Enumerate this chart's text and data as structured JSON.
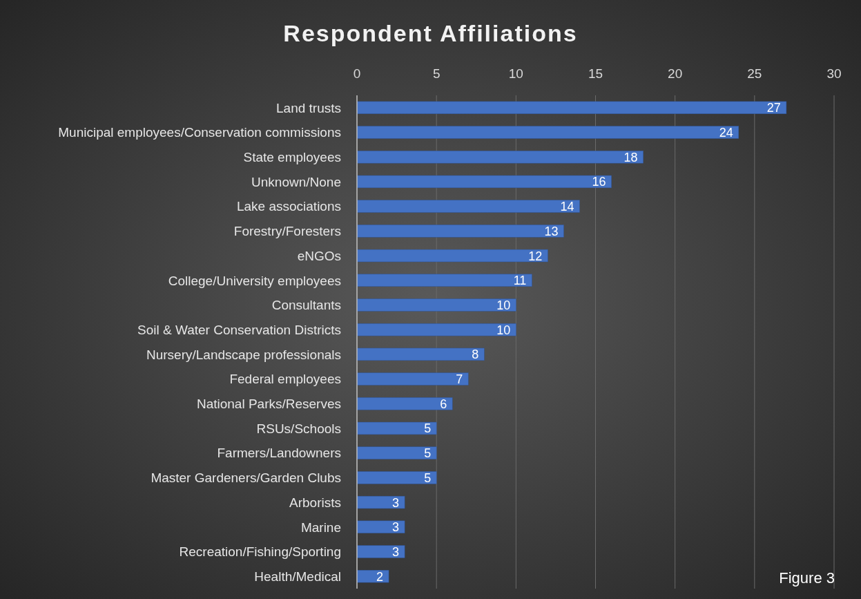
{
  "chart_data": {
    "type": "bar",
    "orientation": "horizontal",
    "title": "Respondent Affiliations",
    "categories": [
      "Land trusts",
      "Municipal employees/Conservation commissions",
      "State employees",
      "Unknown/None",
      "Lake associations",
      "Forestry/Foresters",
      "eNGOs",
      "College/University employees",
      "Consultants",
      "Soil & Water Conservation Districts",
      "Nursery/Landscape professionals",
      "Federal employees",
      "National Parks/Reserves",
      "RSUs/Schools",
      "Farmers/Landowners",
      "Master Gardeners/Garden Clubs",
      "Arborists",
      "Marine",
      "Recreation/Fishing/Sporting",
      "Health/Medical"
    ],
    "values": [
      27,
      24,
      18,
      16,
      14,
      13,
      12,
      11,
      10,
      10,
      8,
      7,
      6,
      5,
      5,
      5,
      3,
      3,
      3,
      2
    ],
    "color": "#4472c4",
    "xlim": [
      0,
      30
    ],
    "xticks": [
      0,
      5,
      10,
      15,
      20,
      25,
      30
    ],
    "grid": "x",
    "data_labels": true,
    "annotations": [
      "Figure 3"
    ]
  }
}
